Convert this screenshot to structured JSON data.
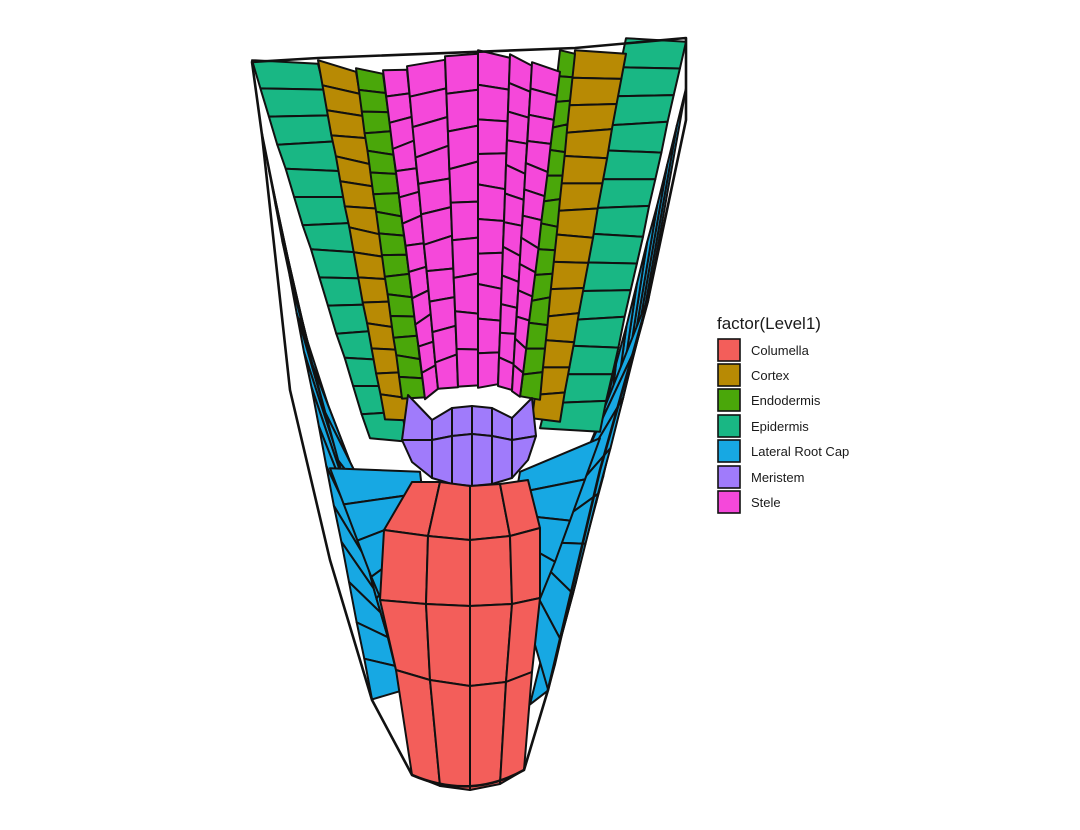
{
  "legend": {
    "title": "factor(Level1)",
    "items": [
      {
        "label": "Columella",
        "color": "#F35E5A"
      },
      {
        "label": "Cortex",
        "color": "#B88A04"
      },
      {
        "label": "Endodermis",
        "color": "#4AA70A"
      },
      {
        "label": "Epidermis",
        "color": "#19B784"
      },
      {
        "label": "Lateral Root Cap",
        "color": "#17A8E3"
      },
      {
        "label": "Meristem",
        "color": "#A07BFB"
      },
      {
        "label": "Stele",
        "color": "#F548DA"
      }
    ]
  }
}
